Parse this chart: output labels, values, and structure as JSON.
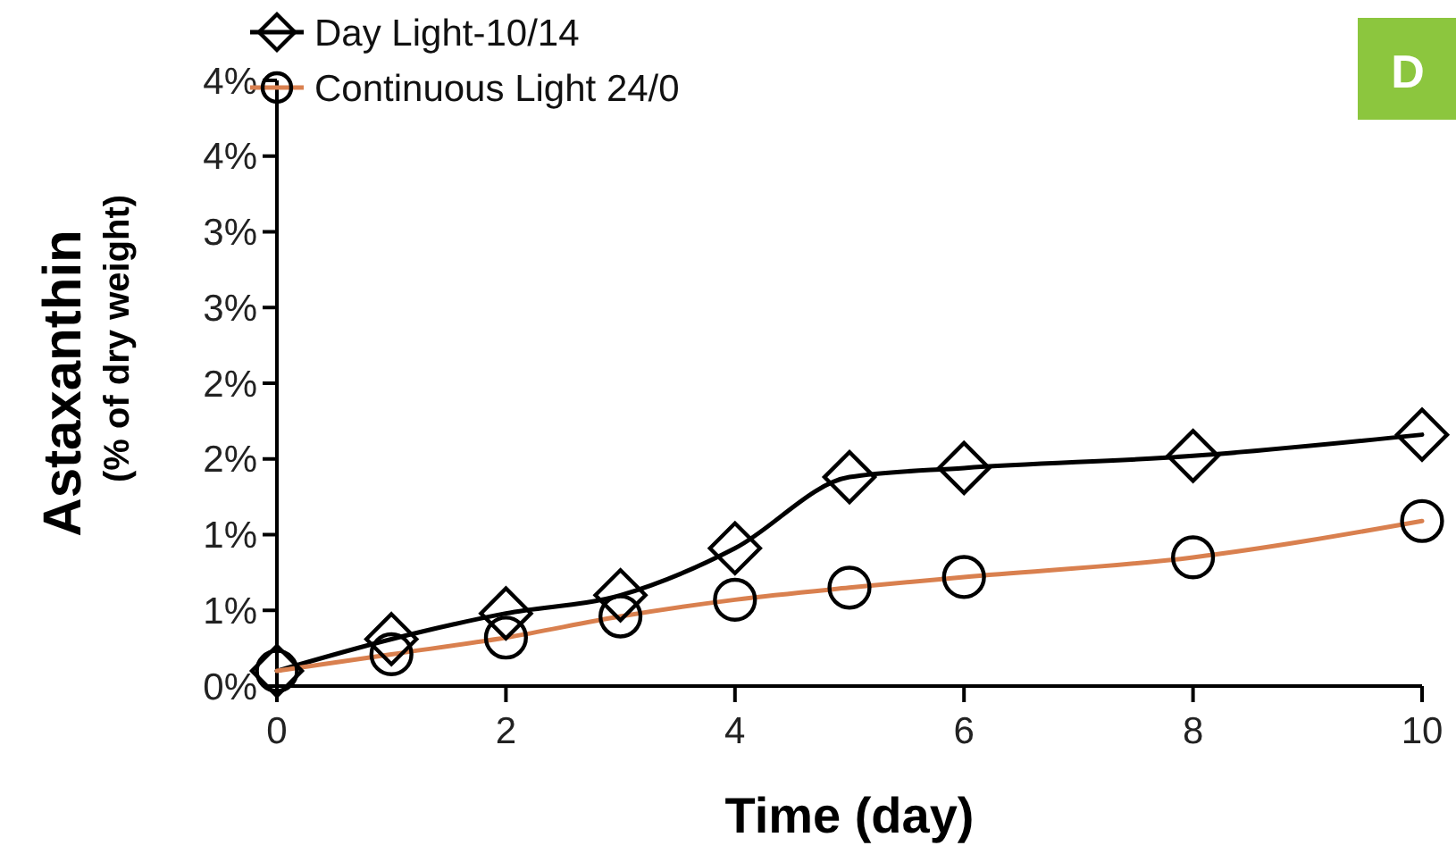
{
  "chart_data": {
    "type": "line",
    "xlabel": "Time (day)",
    "ylabel": "Astaxanthin\n(% of dry weight)",
    "annotations": [
      "D"
    ],
    "x": [
      0,
      1,
      2,
      3,
      4,
      5,
      6,
      8,
      10
    ],
    "series": [
      {
        "name": "Day Light-10/14",
        "color": "#000000",
        "marker": "diamond",
        "values": [
          0.1,
          0.31,
          0.48,
          0.6,
          0.91,
          1.38,
          1.44,
          1.52,
          1.66
        ]
      },
      {
        "name": "Continuous Light 24/0",
        "color": "#d9804f",
        "marker": "circle",
        "values": [
          0.1,
          0.21,
          0.32,
          0.46,
          0.57,
          0.65,
          0.72,
          0.85,
          1.09
        ]
      }
    ],
    "xlim": [
      0,
      10
    ],
    "xticks": [
      0,
      2,
      4,
      6,
      8,
      10
    ],
    "ylim": [
      0,
      4
    ],
    "yticks": [
      {
        "value": 0,
        "label": "0%"
      },
      {
        "value": 0.5,
        "label": "1%"
      },
      {
        "value": 1,
        "label": "1%"
      },
      {
        "value": 1.5,
        "label": "2%"
      },
      {
        "value": 2,
        "label": "2%"
      },
      {
        "value": 2.5,
        "label": "3%"
      },
      {
        "value": 3,
        "label": "3%"
      },
      {
        "value": 3.5,
        "label": "4%"
      },
      {
        "value": 4,
        "label": "4%"
      }
    ],
    "grid": false,
    "legend": "top left"
  }
}
